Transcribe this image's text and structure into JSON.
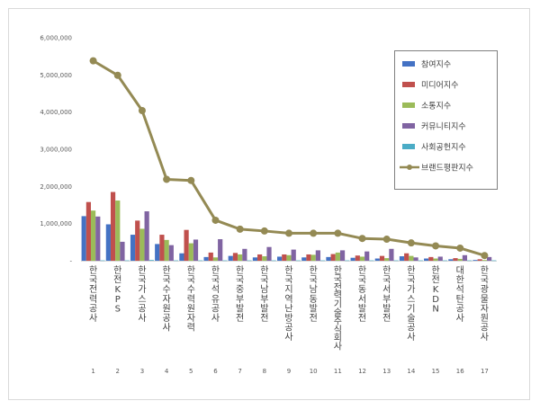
{
  "chart_data": {
    "type": "bar",
    "title": "",
    "xlabel": "",
    "ylabel": "",
    "ylim": [
      0,
      6000000
    ],
    "yticks": [
      0,
      1000000,
      2000000,
      3000000,
      4000000,
      5000000,
      6000000
    ],
    "ytick_labels": [
      "-",
      "1,000,000",
      "2,000,000",
      "3,000,000",
      "4,000,000",
      "5,000,000",
      "6,000,000"
    ],
    "grid": false,
    "legend_position": "top-right",
    "categories": [
      "한국전력공사",
      "한전KPS",
      "한국가스공사",
      "한국수자원공사",
      "한국수력원자력",
      "한국석유공사",
      "한국중부발전",
      "한국남부발전",
      "한국지역난방공사",
      "한국남동발전",
      "한국전력기술주식회사",
      "한국동서발전",
      "한국서부발전",
      "한국가스기술공사",
      "한전KDN",
      "대한석탄공사",
      "한국광물자원공사"
    ],
    "ranks": [
      "1",
      "2",
      "3",
      "4",
      "5",
      "6",
      "7",
      "8",
      "9",
      "10",
      "11",
      "12",
      "13",
      "14",
      "15",
      "16",
      "17"
    ],
    "series": [
      {
        "name": "참여지수",
        "type": "bar",
        "color": "#4472c4",
        "values": [
          1200000,
          980000,
          700000,
          450000,
          200000,
          100000,
          130000,
          90000,
          110000,
          90000,
          100000,
          80000,
          60000,
          120000,
          60000,
          40000,
          20000
        ]
      },
      {
        "name": "미디어지수",
        "type": "bar",
        "color": "#c0504d",
        "values": [
          1580000,
          1850000,
          1080000,
          700000,
          830000,
          220000,
          210000,
          170000,
          170000,
          170000,
          180000,
          140000,
          130000,
          200000,
          100000,
          70000,
          40000
        ]
      },
      {
        "name": "소통지수",
        "type": "bar",
        "color": "#9bbb59",
        "values": [
          1350000,
          1620000,
          860000,
          560000,
          470000,
          90000,
          170000,
          120000,
          150000,
          160000,
          220000,
          110000,
          70000,
          130000,
          60000,
          50000,
          20000
        ]
      },
      {
        "name": "커뮤니티지수",
        "type": "bar",
        "color": "#8064a2",
        "values": [
          1190000,
          510000,
          1330000,
          420000,
          570000,
          580000,
          320000,
          370000,
          300000,
          280000,
          280000,
          250000,
          320000,
          90000,
          110000,
          150000,
          100000
        ]
      },
      {
        "name": "사회공헌지수",
        "type": "bar",
        "color": "#4bacc6",
        "values": [
          10000,
          10000,
          20000,
          10000,
          10000,
          10000,
          10000,
          10000,
          10000,
          10000,
          10000,
          10000,
          10000,
          10000,
          10000,
          10000,
          10000
        ]
      },
      {
        "name": "브랜드평판지수",
        "type": "line",
        "color": "#948a54",
        "values": [
          5380000,
          4990000,
          4040000,
          2190000,
          2160000,
          1090000,
          850000,
          800000,
          740000,
          740000,
          740000,
          600000,
          580000,
          480000,
          400000,
          340000,
          140000
        ]
      }
    ]
  }
}
